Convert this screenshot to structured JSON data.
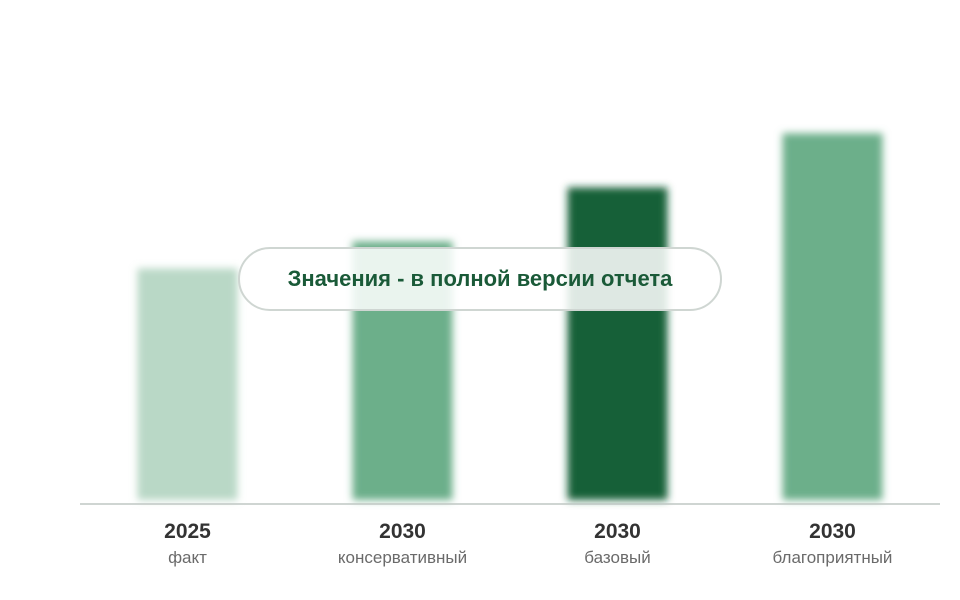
{
  "chart_data": {
    "type": "bar",
    "categories": [
      {
        "year": "2025",
        "scenario": "факт"
      },
      {
        "year": "2030",
        "scenario": "консервативный"
      },
      {
        "year": "2030",
        "scenario": "базовый"
      },
      {
        "year": "2030",
        "scenario": "благоприятный"
      }
    ],
    "values": [
      61,
      68,
      82,
      96
    ],
    "ylim": [
      0,
      115
    ],
    "grid": true,
    "gridlines": [
      23,
      46,
      69,
      92,
      113
    ],
    "bar_colors": [
      "#b9d8c6",
      "#6caf8a",
      "#176038",
      "#6caf8a"
    ],
    "values_obscured": true
  },
  "overlay": {
    "notice": "Значения - в полной версии отчета"
  }
}
